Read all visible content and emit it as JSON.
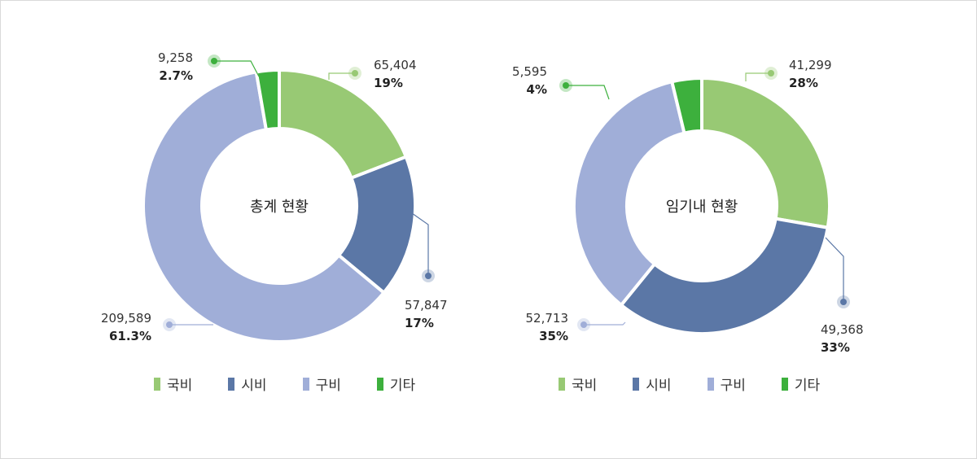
{
  "colors": {
    "gukbi": "#98c974",
    "sibi": "#5b77a6",
    "gubi": "#a0aed8",
    "gita": "#3db03d",
    "leader_gukbi": "#98c974",
    "leader_sibi": "#5b77a6",
    "leader_gubi": "#a0aed8",
    "leader_gita": "#3db03d"
  },
  "chart_data": [
    {
      "type": "pie",
      "donut": true,
      "center_label": "총계 현황",
      "categories": [
        "국비",
        "시비",
        "구비",
        "기타"
      ],
      "values": [
        65404,
        57847,
        209589,
        9258
      ],
      "value_labels": [
        "65,404",
        "57,847",
        "209,589",
        "9,258"
      ],
      "percent_labels": [
        "19%",
        "17%",
        "61.3%",
        "2.7%"
      ],
      "legend_placement": "bottom"
    },
    {
      "type": "pie",
      "donut": true,
      "center_label": "임기내 현황",
      "categories": [
        "국비",
        "시비",
        "구비",
        "기타"
      ],
      "values": [
        41299,
        49368,
        52713,
        5595
      ],
      "value_labels": [
        "41,299",
        "49,368",
        "52,713",
        "5,595"
      ],
      "percent_labels": [
        "28%",
        "33%",
        "35%",
        "4%"
      ],
      "legend_placement": "bottom"
    }
  ],
  "legend_items": [
    {
      "label": "국비",
      "color": "#98c974"
    },
    {
      "label": "시비",
      "color": "#5b77a6"
    },
    {
      "label": "구비",
      "color": "#a0aed8"
    },
    {
      "label": "기타",
      "color": "#3db03d"
    }
  ]
}
